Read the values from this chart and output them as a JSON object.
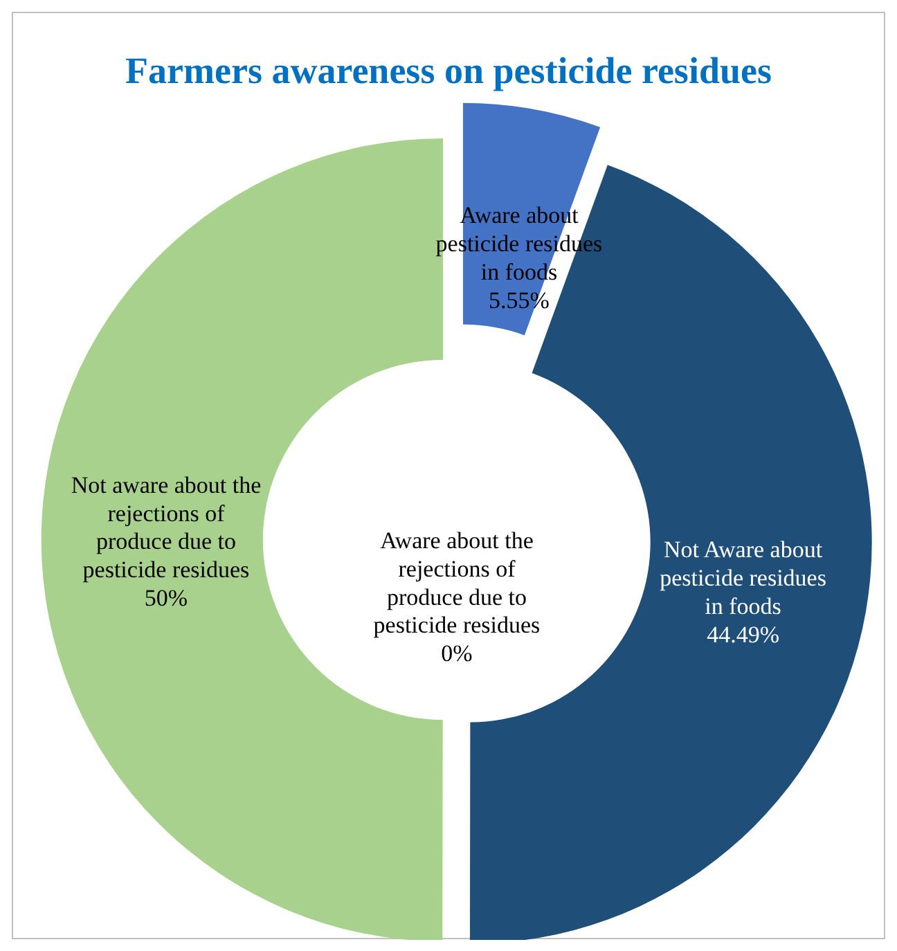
{
  "chart_data": {
    "type": "donut",
    "title": "Farmers awareness  on pesticide residues",
    "categories": [
      "Aware about pesticide residues in foods",
      "Not Aware about pesticide residues in foods",
      "Aware about the rejections of produce due to pesticide residues",
      "Not aware about the rejections of produce due to pesticide residues"
    ],
    "values": [
      5.55,
      44.49,
      0,
      50
    ],
    "value_labels": [
      "5.55%",
      "44.49%",
      "0%",
      "50%"
    ],
    "colors": [
      "#4472c4",
      "#1f4e79",
      "#a5a5a5",
      "#a9d18e"
    ]
  }
}
